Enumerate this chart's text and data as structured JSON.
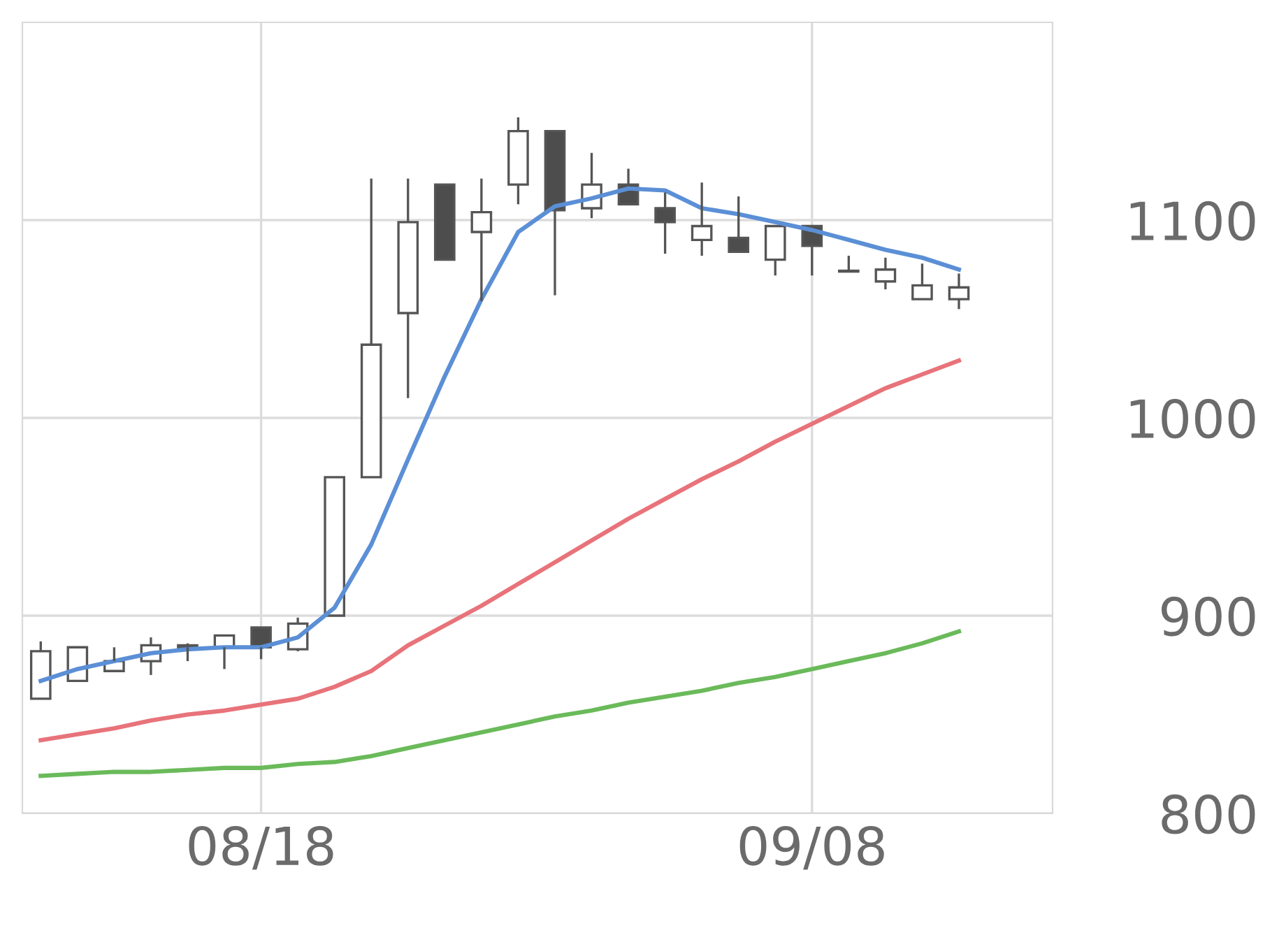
{
  "chart_data": {
    "type": "candlestick",
    "categories": [
      null,
      null,
      null,
      null,
      null,
      null,
      "08/18",
      null,
      null,
      null,
      null,
      null,
      null,
      null,
      null,
      null,
      null,
      null,
      null,
      null,
      null,
      "09/08",
      null,
      null,
      null,
      null
    ],
    "ohlc": [
      [
        858,
        887,
        858,
        882
      ],
      [
        867,
        884,
        867,
        884
      ],
      [
        872,
        884,
        872,
        877
      ],
      [
        877,
        889,
        870,
        885
      ],
      [
        884,
        886,
        877,
        885
      ],
      [
        884,
        890,
        873,
        890
      ],
      [
        894,
        894,
        878,
        884
      ],
      [
        883,
        899,
        882,
        896
      ],
      [
        900,
        970,
        900,
        970
      ],
      [
        970,
        1121,
        970,
        1037
      ],
      [
        1053,
        1121,
        1010,
        1099
      ],
      [
        1118,
        1118,
        1080,
        1080
      ],
      [
        1094,
        1121,
        1059,
        1104
      ],
      [
        1118,
        1152,
        1108,
        1145
      ],
      [
        1145,
        1145,
        1062,
        1105
      ],
      [
        1106,
        1134,
        1101,
        1118
      ],
      [
        1118,
        1126,
        1108,
        1108
      ],
      [
        1106,
        1114,
        1083,
        1099
      ],
      [
        1090,
        1119,
        1082,
        1097
      ],
      [
        1091,
        1112,
        1084,
        1084
      ],
      [
        1080,
        1097,
        1072,
        1097
      ],
      [
        1097,
        1097,
        1072,
        1087
      ],
      [
        1074,
        1082,
        1074,
        1074
      ],
      [
        1069,
        1081,
        1065,
        1075
      ],
      [
        1060,
        1078,
        1060,
        1067
      ],
      [
        1060,
        1073,
        1055,
        1066
      ]
    ],
    "colors": [
      "#ffffff",
      "#ffffff",
      "#ffffff",
      "#ffffff",
      "#ffffff",
      "#ffffff",
      "#4d4d4d",
      "#ffffff",
      "#ffffff",
      "#ffffff",
      "#ffffff",
      "#4d4d4d",
      "#ffffff",
      "#ffffff",
      "#4d4d4d",
      "#ffffff",
      "#4d4d4d",
      "#4d4d4d",
      "#ffffff",
      "#4d4d4d",
      "#ffffff",
      "#4d4d4d",
      "#ffffff",
      "#ffffff",
      "#ffffff",
      "#ffffff"
    ],
    "series": [
      {
        "type": "line",
        "color": "#5b8fd6",
        "values": [
          867,
          873,
          877,
          881,
          883,
          884,
          884,
          889,
          904,
          936,
          979,
          1021,
          1060,
          1094,
          1107,
          1111,
          1116,
          1115,
          1106,
          1103,
          1099,
          1095,
          1090,
          1085,
          1081,
          1075
        ]
      },
      {
        "type": "line",
        "color": "#e8737a",
        "values": [
          837,
          840,
          843,
          847,
          850,
          852,
          855,
          858,
          864,
          872,
          885,
          895,
          905,
          916,
          927,
          938,
          949,
          959,
          969,
          978,
          988,
          997,
          1006,
          1015,
          1022,
          1029
        ]
      },
      {
        "type": "line",
        "color": "#6aba5a",
        "values": [
          819,
          820,
          821,
          821,
          822,
          823,
          823,
          825,
          826,
          829,
          833,
          837,
          841,
          845,
          849,
          852,
          856,
          859,
          862,
          866,
          869,
          873,
          877,
          881,
          886,
          892
        ]
      }
    ],
    "ylim": [
      800,
      1200
    ],
    "yticks": [
      800,
      900,
      1000,
      1100
    ],
    "grid": true
  }
}
